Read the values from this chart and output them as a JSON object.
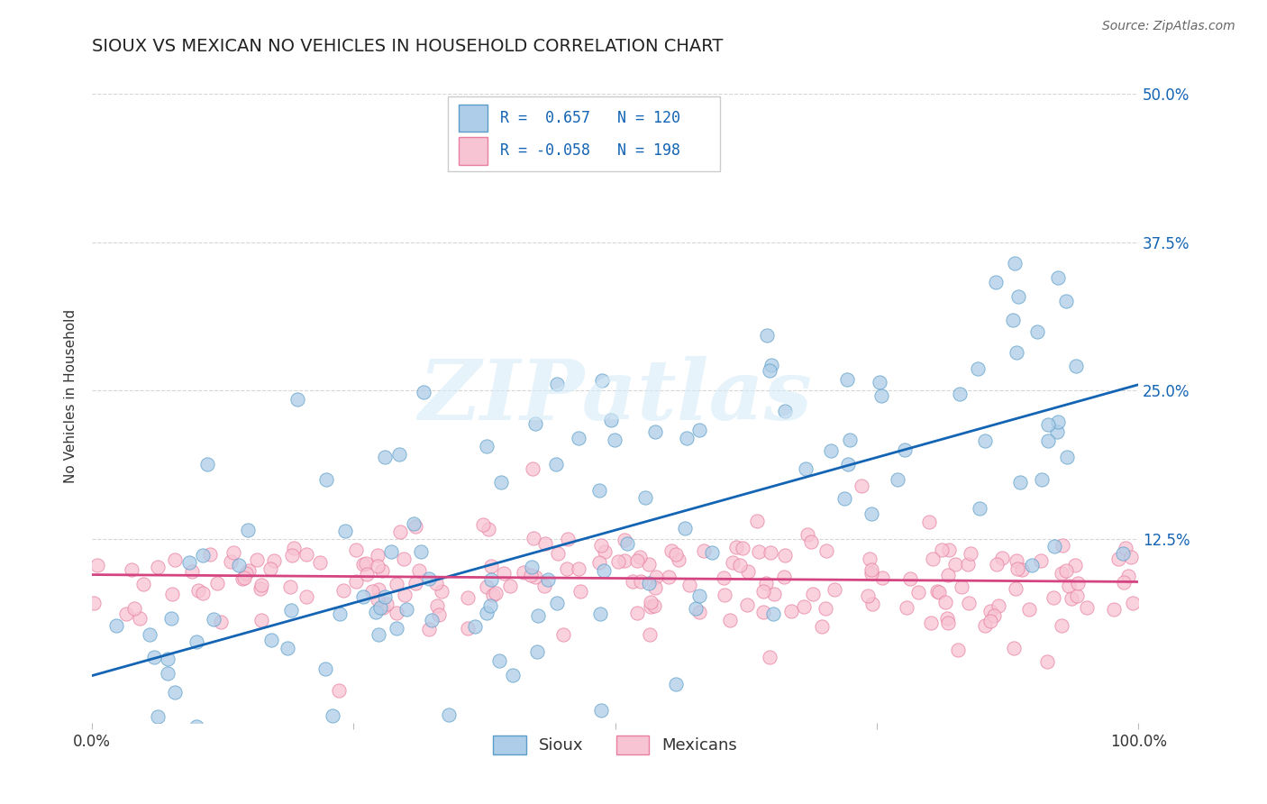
{
  "title": "SIOUX VS MEXICAN NO VEHICLES IN HOUSEHOLD CORRELATION CHART",
  "source": "Source: ZipAtlas.com",
  "ylabel": "No Vehicles in Household",
  "xlim": [
    0.0,
    1.0
  ],
  "ylim": [
    -0.03,
    0.52
  ],
  "yticks": [
    0.125,
    0.25,
    0.375,
    0.5
  ],
  "ytick_labels": [
    "12.5%",
    "25.0%",
    "37.5%",
    "50.0%"
  ],
  "xticks": [
    0.0,
    0.25,
    0.5,
    0.75,
    1.0
  ],
  "xtick_labels": [
    "0.0%",
    "",
    "",
    "",
    "100.0%"
  ],
  "sioux_dot_face": "#aecde8",
  "sioux_dot_edge": "#5b9ec9",
  "mexican_dot_face": "#f7c4d4",
  "mexican_dot_edge": "#e87fa0",
  "line_sioux": "#1464b4",
  "line_mexican": "#d44480",
  "R_sioux": 0.657,
  "N_sioux": 120,
  "R_mexican": -0.058,
  "N_mexican": 198,
  "watermark": "ZIPatlas",
  "title_fontsize": 14,
  "grid_color": "#cccccc",
  "legend_sioux": "Sioux",
  "legend_mexican": "Mexicans",
  "box_R_sioux": "R =  0.657   N = 120",
  "box_R_mexican": "R = -0.058   N = 198",
  "box_text_color": "#1464b4",
  "sioux_line_start_y": 0.01,
  "sioux_line_end_y": 0.255,
  "mexican_line_y": 0.092
}
